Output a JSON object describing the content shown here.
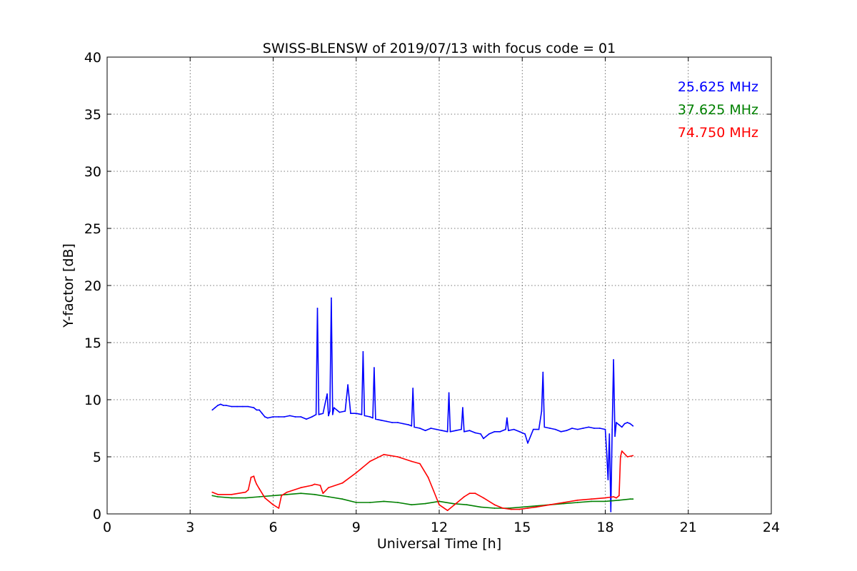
{
  "chart_data": {
    "type": "line",
    "title": "SWISS-BLENSW of 2019/07/13 with focus code = 01",
    "xlabel": "Universal Time [h]",
    "ylabel": "Y-factor [dB]",
    "xlim": [
      0,
      24
    ],
    "ylim": [
      0,
      40
    ],
    "xticks": [
      0,
      3,
      6,
      9,
      12,
      15,
      18,
      21,
      24
    ],
    "yticks": [
      0,
      5,
      10,
      15,
      20,
      25,
      30,
      35,
      40
    ],
    "grid": true,
    "legend_placement": "top-right",
    "series": [
      {
        "name": "25.625 MHz",
        "color": "#0000ff",
        "x": [
          3.8,
          3.9,
          4.0,
          4.1,
          4.2,
          4.3,
          4.5,
          4.7,
          4.9,
          5.1,
          5.3,
          5.4,
          5.5,
          5.6,
          5.7,
          5.8,
          6.0,
          6.2,
          6.4,
          6.6,
          6.8,
          7.0,
          7.2,
          7.4,
          7.55,
          7.6,
          7.65,
          7.8,
          7.95,
          8.0,
          8.05,
          8.1,
          8.15,
          8.2,
          8.4,
          8.6,
          8.7,
          8.8,
          9.0,
          9.2,
          9.25,
          9.3,
          9.5,
          9.6,
          9.65,
          9.7,
          9.9,
          10.1,
          10.3,
          10.5,
          10.7,
          10.9,
          11.0,
          11.05,
          11.1,
          11.3,
          11.5,
          11.7,
          11.9,
          12.1,
          12.3,
          12.35,
          12.4,
          12.6,
          12.8,
          12.85,
          12.9,
          13.1,
          13.3,
          13.5,
          13.6,
          13.8,
          14.0,
          14.2,
          14.4,
          14.45,
          14.5,
          14.7,
          14.9,
          15.1,
          15.2,
          15.4,
          15.6,
          15.7,
          15.75,
          15.8,
          16.0,
          16.2,
          16.4,
          16.6,
          16.8,
          17.0,
          17.2,
          17.4,
          17.6,
          17.8,
          18.0,
          18.05,
          18.1,
          18.15,
          18.2,
          18.25,
          18.3,
          18.35,
          18.4,
          18.5,
          18.6,
          18.7,
          18.8,
          18.9,
          19.0
        ],
        "y": [
          9.1,
          9.3,
          9.5,
          9.6,
          9.5,
          9.5,
          9.4,
          9.4,
          9.4,
          9.4,
          9.3,
          9.1,
          9.1,
          8.8,
          8.5,
          8.4,
          8.5,
          8.5,
          8.5,
          8.6,
          8.5,
          8.5,
          8.3,
          8.5,
          8.7,
          18.0,
          8.7,
          8.8,
          10.5,
          8.6,
          9.0,
          18.9,
          8.7,
          9.3,
          8.9,
          9.0,
          11.3,
          8.8,
          8.8,
          8.7,
          14.2,
          8.6,
          8.5,
          8.4,
          12.8,
          8.3,
          8.2,
          8.1,
          8.0,
          8.0,
          7.9,
          7.8,
          7.7,
          11.0,
          7.6,
          7.5,
          7.3,
          7.5,
          7.4,
          7.3,
          7.2,
          10.6,
          7.2,
          7.3,
          7.4,
          9.3,
          7.2,
          7.3,
          7.1,
          7.0,
          6.6,
          7.0,
          7.2,
          7.2,
          7.4,
          8.4,
          7.3,
          7.4,
          7.2,
          7.0,
          6.2,
          7.4,
          7.4,
          9.0,
          12.4,
          7.6,
          7.5,
          7.4,
          7.2,
          7.3,
          7.5,
          7.4,
          7.5,
          7.6,
          7.5,
          7.5,
          7.4,
          5.5,
          3.0,
          7.0,
          0.2,
          7.4,
          13.5,
          6.8,
          8.0,
          7.8,
          7.6,
          7.9,
          8.0,
          7.9,
          7.7
        ]
      },
      {
        "name": "37.625 MHz",
        "color": "#008000",
        "x": [
          3.8,
          4.0,
          4.5,
          5.0,
          5.5,
          6.0,
          6.5,
          7.0,
          7.5,
          8.0,
          8.5,
          9.0,
          9.5,
          10.0,
          10.5,
          11.0,
          11.5,
          12.0,
          12.5,
          13.0,
          13.5,
          14.0,
          14.5,
          15.0,
          15.5,
          16.0,
          16.5,
          17.0,
          17.5,
          18.0,
          18.5,
          18.9,
          19.0
        ],
        "y": [
          1.6,
          1.5,
          1.4,
          1.4,
          1.5,
          1.6,
          1.7,
          1.8,
          1.7,
          1.5,
          1.3,
          1.0,
          1.0,
          1.1,
          1.0,
          0.8,
          0.9,
          1.1,
          0.9,
          0.8,
          0.6,
          0.5,
          0.5,
          0.6,
          0.7,
          0.8,
          0.9,
          1.0,
          1.1,
          1.1,
          1.2,
          1.3,
          1.3
        ]
      },
      {
        "name": "74.750 MHz",
        "color": "#ff0000",
        "x": [
          3.8,
          4.0,
          4.5,
          5.0,
          5.1,
          5.2,
          5.3,
          5.35,
          5.4,
          5.5,
          5.7,
          6.0,
          6.2,
          6.3,
          6.5,
          7.0,
          7.4,
          7.5,
          7.7,
          7.8,
          8.0,
          8.5,
          9.0,
          9.5,
          10.0,
          10.5,
          11.0,
          11.3,
          11.6,
          11.8,
          12.0,
          12.3,
          12.6,
          12.9,
          13.1,
          13.3,
          13.6,
          14.0,
          14.3,
          14.6,
          14.9,
          15.2,
          15.5,
          16.0,
          16.5,
          17.0,
          17.5,
          18.0,
          18.3,
          18.4,
          18.5,
          18.55,
          18.6,
          18.8,
          19.0
        ],
        "y": [
          1.9,
          1.7,
          1.7,
          1.9,
          2.1,
          3.2,
          3.3,
          2.9,
          2.6,
          2.2,
          1.4,
          0.8,
          0.5,
          1.6,
          1.9,
          2.3,
          2.5,
          2.6,
          2.5,
          1.8,
          2.3,
          2.7,
          3.6,
          4.6,
          5.2,
          5.0,
          4.6,
          4.4,
          3.2,
          2.0,
          0.8,
          0.3,
          0.9,
          1.5,
          1.8,
          1.8,
          1.4,
          0.8,
          0.5,
          0.4,
          0.4,
          0.5,
          0.6,
          0.8,
          1.0,
          1.2,
          1.3,
          1.4,
          1.5,
          1.4,
          1.6,
          5.0,
          5.5,
          5.0,
          5.1
        ]
      }
    ]
  }
}
